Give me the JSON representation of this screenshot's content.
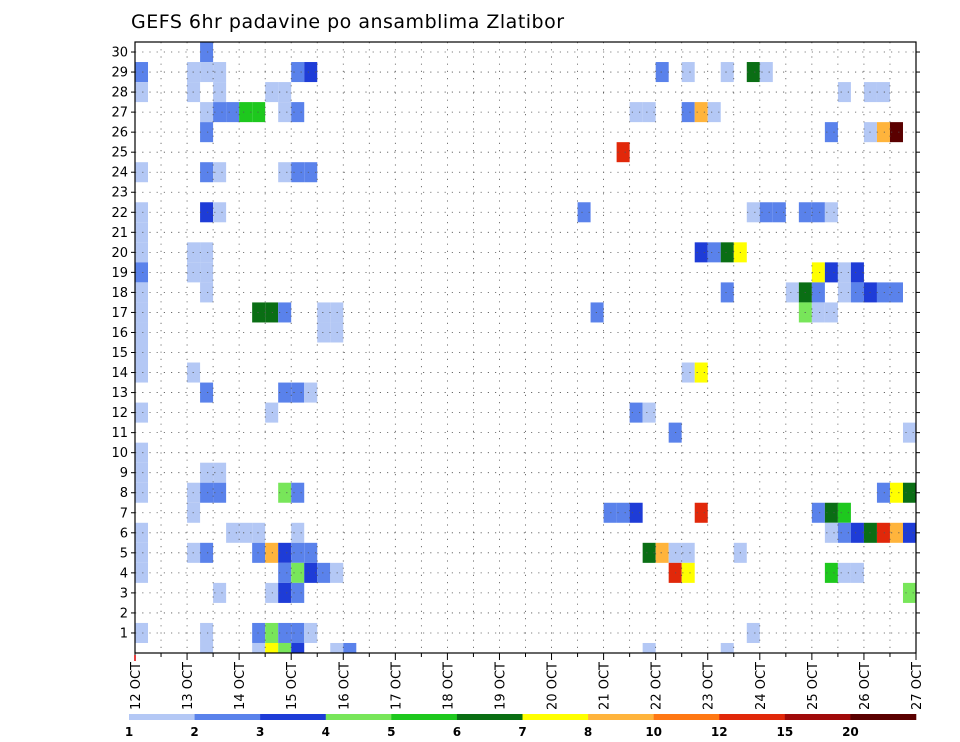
{
  "chart_data": {
    "type": "heatmap",
    "title": "GEFS 6hr padavine po ansamblima Zlatibor",
    "xlabel": "",
    "ylabel": "",
    "x_tick_labels": [
      "12 OCT",
      "13 OCT",
      "14 OCT",
      "15 OCT",
      "16 OCT",
      "17 OCT",
      "18 OCT",
      "19 OCT",
      "20 OCT",
      "21 OCT",
      "22 OCT",
      "23 OCT",
      "24 OCT",
      "25 OCT",
      "26 OCT",
      "27 OCT"
    ],
    "y_tick_labels": [
      "1",
      "2",
      "3",
      "4",
      "5",
      "6",
      "7",
      "8",
      "9",
      "10",
      "11",
      "12",
      "13",
      "14",
      "15",
      "16",
      "17",
      "18",
      "19",
      "20",
      "21",
      "22",
      "23",
      "24",
      "25",
      "26",
      "27",
      "28",
      "29",
      "30"
    ],
    "xlim": [
      "12 OCT",
      "27 OCT"
    ],
    "ylim": [
      0,
      30
    ],
    "grid": "dotted",
    "color_scale": {
      "labels": [
        "1",
        "2",
        "3",
        "4",
        "5",
        "6",
        "7",
        "8",
        "10",
        "12",
        "15",
        "20"
      ],
      "colors": [
        "#b4c8f5",
        "#5a82eb",
        "#1e3cd7",
        "#78e65a",
        "#1ec81e",
        "#0a6e14",
        "#ffff00",
        "#ffb43c",
        "#ff7814",
        "#e1280a",
        "#a00a0a",
        "#5a0000"
      ]
    },
    "cells": [
      {
        "member": 30,
        "time": "13 OCT 12Z",
        "value": 2
      },
      {
        "member": 29,
        "time": "12 OCT 06Z",
        "value": 2
      },
      {
        "member": 29,
        "time": "13 OCT 06Z",
        "value": 1
      },
      {
        "member": 29,
        "time": "13 OCT 12Z",
        "value": 1
      },
      {
        "member": 29,
        "time": "13 OCT 18Z",
        "value": 1
      },
      {
        "member": 29,
        "time": "15 OCT 06Z",
        "value": 2
      },
      {
        "member": 29,
        "time": "15 OCT 12Z",
        "value": 3
      },
      {
        "member": 29,
        "time": "22 OCT 06Z",
        "value": 2
      },
      {
        "member": 29,
        "time": "22 OCT 18Z",
        "value": 1
      },
      {
        "member": 29,
        "time": "23 OCT 12Z",
        "value": 1
      },
      {
        "member": 29,
        "time": "24 OCT 00Z",
        "value": 6
      },
      {
        "member": 29,
        "time": "24 OCT 06Z",
        "value": 1
      },
      {
        "member": 28,
        "time": "12 OCT 06Z",
        "value": 1
      },
      {
        "member": 28,
        "time": "13 OCT 06Z",
        "value": 1
      },
      {
        "member": 28,
        "time": "13 OCT 18Z",
        "value": 1
      },
      {
        "member": 28,
        "time": "14 OCT 18Z",
        "value": 1
      },
      {
        "member": 28,
        "time": "15 OCT 00Z",
        "value": 1
      },
      {
        "member": 28,
        "time": "25 OCT 18Z",
        "value": 1
      },
      {
        "member": 28,
        "time": "26 OCT 06Z",
        "value": 1
      },
      {
        "member": 28,
        "time": "26 OCT 12Z",
        "value": 1
      },
      {
        "member": 27,
        "time": "13 OCT 12Z",
        "value": 1
      },
      {
        "member": 27,
        "time": "13 OCT 18Z",
        "value": 2
      },
      {
        "member": 27,
        "time": "14 OCT 00Z",
        "value": 2
      },
      {
        "member": 27,
        "time": "14 OCT 06Z",
        "value": 5
      },
      {
        "member": 27,
        "time": "14 OCT 12Z",
        "value": 5
      },
      {
        "member": 27,
        "time": "15 OCT 00Z",
        "value": 1
      },
      {
        "member": 27,
        "time": "15 OCT 06Z",
        "value": 2
      },
      {
        "member": 27,
        "time": "21 OCT 18Z",
        "value": 1
      },
      {
        "member": 27,
        "time": "22 OCT 00Z",
        "value": 1
      },
      {
        "member": 27,
        "time": "22 OCT 18Z",
        "value": 2
      },
      {
        "member": 27,
        "time": "23 OCT 00Z",
        "value": 8
      },
      {
        "member": 27,
        "time": "23 OCT 06Z",
        "value": 1
      },
      {
        "member": 26,
        "time": "13 OCT 12Z",
        "value": 2
      },
      {
        "member": 26,
        "time": "25 OCT 12Z",
        "value": 2
      },
      {
        "member": 26,
        "time": "26 OCT 06Z",
        "value": 1
      },
      {
        "member": 26,
        "time": "26 OCT 12Z",
        "value": 8
      },
      {
        "member": 26,
        "time": "26 OCT 18Z",
        "value": 20
      },
      {
        "member": 25,
        "time": "21 OCT 12Z",
        "value": 12
      },
      {
        "member": 24,
        "time": "12 OCT 06Z",
        "value": 1
      },
      {
        "member": 24,
        "time": "13 OCT 12Z",
        "value": 2
      },
      {
        "member": 24,
        "time": "13 OCT 18Z",
        "value": 1
      },
      {
        "member": 24,
        "time": "15 OCT 00Z",
        "value": 1
      },
      {
        "member": 24,
        "time": "15 OCT 06Z",
        "value": 2
      },
      {
        "member": 24,
        "time": "15 OCT 12Z",
        "value": 2
      },
      {
        "member": 22,
        "time": "12 OCT 06Z",
        "value": 1
      },
      {
        "member": 22,
        "time": "13 OCT 12Z",
        "value": 3
      },
      {
        "member": 22,
        "time": "13 OCT 18Z",
        "value": 1
      },
      {
        "member": 22,
        "time": "20 OCT 18Z",
        "value": 2
      },
      {
        "member": 22,
        "time": "24 OCT 00Z",
        "value": 1
      },
      {
        "member": 22,
        "time": "24 OCT 06Z",
        "value": 2
      },
      {
        "member": 22,
        "time": "24 OCT 12Z",
        "value": 2
      },
      {
        "member": 22,
        "time": "25 OCT 00Z",
        "value": 2
      },
      {
        "member": 22,
        "time": "25 OCT 06Z",
        "value": 2
      },
      {
        "member": 22,
        "time": "25 OCT 12Z",
        "value": 1
      },
      {
        "member": 21,
        "time": "12 OCT 06Z",
        "value": 1
      },
      {
        "member": 20,
        "time": "12 OCT 06Z",
        "value": 1
      },
      {
        "member": 20,
        "time": "13 OCT 06Z",
        "value": 1
      },
      {
        "member": 20,
        "time": "13 OCT 12Z",
        "value": 1
      },
      {
        "member": 20,
        "time": "23 OCT 00Z",
        "value": 3
      },
      {
        "member": 20,
        "time": "23 OCT 06Z",
        "value": 2
      },
      {
        "member": 20,
        "time": "23 OCT 12Z",
        "value": 6
      },
      {
        "member": 20,
        "time": "23 OCT 18Z",
        "value": 7
      },
      {
        "member": 19,
        "time": "12 OCT 06Z",
        "value": 2
      },
      {
        "member": 19,
        "time": "13 OCT 06Z",
        "value": 1
      },
      {
        "member": 19,
        "time": "13 OCT 12Z",
        "value": 1
      },
      {
        "member": 19,
        "time": "25 OCT 06Z",
        "value": 7
      },
      {
        "member": 19,
        "time": "25 OCT 12Z",
        "value": 3
      },
      {
        "member": 19,
        "time": "25 OCT 18Z",
        "value": 1
      },
      {
        "member": 19,
        "time": "26 OCT 00Z",
        "value": 3
      },
      {
        "member": 18,
        "time": "12 OCT 06Z",
        "value": 1
      },
      {
        "member": 18,
        "time": "13 OCT 12Z",
        "value": 1
      },
      {
        "member": 18,
        "time": "23 OCT 12Z",
        "value": 2
      },
      {
        "member": 18,
        "time": "24 OCT 18Z",
        "value": 1
      },
      {
        "member": 18,
        "time": "25 OCT 00Z",
        "value": 6
      },
      {
        "member": 18,
        "time": "25 OCT 06Z",
        "value": 2
      },
      {
        "member": 18,
        "time": "25 OCT 18Z",
        "value": 1
      },
      {
        "member": 18,
        "time": "26 OCT 00Z",
        "value": 2
      },
      {
        "member": 18,
        "time": "26 OCT 06Z",
        "value": 3
      },
      {
        "member": 18,
        "time": "26 OCT 12Z",
        "value": 2
      },
      {
        "member": 18,
        "time": "26 OCT 18Z",
        "value": 2
      },
      {
        "member": 17,
        "time": "12 OCT 06Z",
        "value": 1
      },
      {
        "member": 17,
        "time": "14 OCT 12Z",
        "value": 6
      },
      {
        "member": 17,
        "time": "14 OCT 18Z",
        "value": 6
      },
      {
        "member": 17,
        "time": "15 OCT 00Z",
        "value": 2
      },
      {
        "member": 17,
        "time": "15 OCT 18Z",
        "value": 1
      },
      {
        "member": 17,
        "time": "16 OCT 00Z",
        "value": 1
      },
      {
        "member": 17,
        "time": "21 OCT 00Z",
        "value": 2
      },
      {
        "member": 17,
        "time": "25 OCT 00Z",
        "value": 4
      },
      {
        "member": 17,
        "time": "25 OCT 06Z",
        "value": 1
      },
      {
        "member": 17,
        "time": "25 OCT 12Z",
        "value": 1
      },
      {
        "member": 16,
        "time": "12 OCT 06Z",
        "value": 1
      },
      {
        "member": 16,
        "time": "15 OCT 18Z",
        "value": 1
      },
      {
        "member": 16,
        "time": "16 OCT 00Z",
        "value": 1
      },
      {
        "member": 15,
        "time": "12 OCT 06Z",
        "value": 1
      },
      {
        "member": 14,
        "time": "12 OCT 06Z",
        "value": 1
      },
      {
        "member": 14,
        "time": "13 OCT 06Z",
        "value": 1
      },
      {
        "member": 14,
        "time": "22 OCT 18Z",
        "value": 1
      },
      {
        "member": 14,
        "time": "23 OCT 00Z",
        "value": 7
      },
      {
        "member": 13,
        "time": "13 OCT 12Z",
        "value": 2
      },
      {
        "member": 13,
        "time": "15 OCT 00Z",
        "value": 2
      },
      {
        "member": 13,
        "time": "15 OCT 06Z",
        "value": 2
      },
      {
        "member": 13,
        "time": "15 OCT 12Z",
        "value": 1
      },
      {
        "member": 12,
        "time": "12 OCT 06Z",
        "value": 1
      },
      {
        "member": 12,
        "time": "14 OCT 18Z",
        "value": 1
      },
      {
        "member": 12,
        "time": "21 OCT 18Z",
        "value": 2
      },
      {
        "member": 12,
        "time": "22 OCT 00Z",
        "value": 1
      },
      {
        "member": 11,
        "time": "22 OCT 12Z",
        "value": 2
      },
      {
        "member": 11,
        "time": "27 OCT 00Z",
        "value": 1
      },
      {
        "member": 10,
        "time": "12 OCT 06Z",
        "value": 1
      },
      {
        "member": 9,
        "time": "12 OCT 06Z",
        "value": 1
      },
      {
        "member": 9,
        "time": "13 OCT 12Z",
        "value": 1
      },
      {
        "member": 9,
        "time": "13 OCT 18Z",
        "value": 1
      },
      {
        "member": 8,
        "time": "12 OCT 06Z",
        "value": 1
      },
      {
        "member": 8,
        "time": "13 OCT 06Z",
        "value": 1
      },
      {
        "member": 8,
        "time": "13 OCT 12Z",
        "value": 2
      },
      {
        "member": 8,
        "time": "13 OCT 18Z",
        "value": 2
      },
      {
        "member": 8,
        "time": "15 OCT 00Z",
        "value": 4
      },
      {
        "member": 8,
        "time": "15 OCT 06Z",
        "value": 2
      },
      {
        "member": 8,
        "time": "26 OCT 12Z",
        "value": 2
      },
      {
        "member": 8,
        "time": "26 OCT 18Z",
        "value": 7
      },
      {
        "member": 8,
        "time": "27 OCT 00Z",
        "value": 6
      },
      {
        "member": 7,
        "time": "13 OCT 06Z",
        "value": 1
      },
      {
        "member": 7,
        "time": "21 OCT 06Z",
        "value": 2
      },
      {
        "member": 7,
        "time": "21 OCT 12Z",
        "value": 2
      },
      {
        "member": 7,
        "time": "21 OCT 18Z",
        "value": 3
      },
      {
        "member": 7,
        "time": "23 OCT 00Z",
        "value": 12
      },
      {
        "member": 7,
        "time": "25 OCT 06Z",
        "value": 2
      },
      {
        "member": 7,
        "time": "25 OCT 12Z",
        "value": 6
      },
      {
        "member": 7,
        "time": "25 OCT 18Z",
        "value": 5
      },
      {
        "member": 6,
        "time": "12 OCT 06Z",
        "value": 1
      },
      {
        "member": 6,
        "time": "14 OCT 00Z",
        "value": 1
      },
      {
        "member": 6,
        "time": "14 OCT 06Z",
        "value": 1
      },
      {
        "member": 6,
        "time": "14 OCT 12Z",
        "value": 1
      },
      {
        "member": 6,
        "time": "15 OCT 06Z",
        "value": 1
      },
      {
        "member": 6,
        "time": "25 OCT 12Z",
        "value": 1
      },
      {
        "member": 6,
        "time": "25 OCT 18Z",
        "value": 2
      },
      {
        "member": 6,
        "time": "26 OCT 00Z",
        "value": 3
      },
      {
        "member": 6,
        "time": "26 OCT 06Z",
        "value": 6
      },
      {
        "member": 6,
        "time": "26 OCT 12Z",
        "value": 12
      },
      {
        "member": 6,
        "time": "26 OCT 18Z",
        "value": 8
      },
      {
        "member": 6,
        "time": "27 OCT 00Z",
        "value": 3
      },
      {
        "member": 5,
        "time": "12 OCT 06Z",
        "value": 1
      },
      {
        "member": 5,
        "time": "13 OCT 06Z",
        "value": 1
      },
      {
        "member": 5,
        "time": "13 OCT 12Z",
        "value": 2
      },
      {
        "member": 5,
        "time": "14 OCT 12Z",
        "value": 2
      },
      {
        "member": 5,
        "time": "14 OCT 18Z",
        "value": 8
      },
      {
        "member": 5,
        "time": "15 OCT 00Z",
        "value": 3
      },
      {
        "member": 5,
        "time": "15 OCT 06Z",
        "value": 2
      },
      {
        "member": 5,
        "time": "15 OCT 12Z",
        "value": 2
      },
      {
        "member": 5,
        "time": "22 OCT 00Z",
        "value": 6
      },
      {
        "member": 5,
        "time": "22 OCT 06Z",
        "value": 8
      },
      {
        "member": 5,
        "time": "22 OCT 12Z",
        "value": 1
      },
      {
        "member": 5,
        "time": "22 OCT 18Z",
        "value": 1
      },
      {
        "member": 5,
        "time": "23 OCT 18Z",
        "value": 1
      },
      {
        "member": 4,
        "time": "12 OCT 06Z",
        "value": 1
      },
      {
        "member": 4,
        "time": "15 OCT 00Z",
        "value": 2
      },
      {
        "member": 4,
        "time": "15 OCT 06Z",
        "value": 4
      },
      {
        "member": 4,
        "time": "15 OCT 12Z",
        "value": 3
      },
      {
        "member": 4,
        "time": "15 OCT 18Z",
        "value": 2
      },
      {
        "member": 4,
        "time": "16 OCT 00Z",
        "value": 1
      },
      {
        "member": 4,
        "time": "22 OCT 12Z",
        "value": 12
      },
      {
        "member": 4,
        "time": "22 OCT 18Z",
        "value": 7
      },
      {
        "member": 4,
        "time": "25 OCT 12Z",
        "value": 5
      },
      {
        "member": 4,
        "time": "25 OCT 18Z",
        "value": 1
      },
      {
        "member": 4,
        "time": "26 OCT 00Z",
        "value": 1
      },
      {
        "member": 3,
        "time": "13 OCT 18Z",
        "value": 1
      },
      {
        "member": 3,
        "time": "14 OCT 18Z",
        "value": 1
      },
      {
        "member": 3,
        "time": "15 OCT 00Z",
        "value": 3
      },
      {
        "member": 3,
        "time": "15 OCT 06Z",
        "value": 2
      },
      {
        "member": 3,
        "time": "27 OCT 00Z",
        "value": 4
      },
      {
        "member": 1,
        "time": "12 OCT 06Z",
        "value": 1
      },
      {
        "member": 1,
        "time": "13 OCT 12Z",
        "value": 1
      },
      {
        "member": 1,
        "time": "14 OCT 12Z",
        "value": 2
      },
      {
        "member": 1,
        "time": "14 OCT 18Z",
        "value": 4
      },
      {
        "member": 1,
        "time": "15 OCT 00Z",
        "value": 2
      },
      {
        "member": 1,
        "time": "15 OCT 06Z",
        "value": 2
      },
      {
        "member": 1,
        "time": "15 OCT 12Z",
        "value": 1
      },
      {
        "member": 1,
        "time": "24 OCT 00Z",
        "value": 1
      },
      {
        "member": 0,
        "time": "13 OCT 12Z",
        "value": 1
      },
      {
        "member": 0,
        "time": "14 OCT 12Z",
        "value": 1
      },
      {
        "member": 0,
        "time": "14 OCT 18Z",
        "value": 7
      },
      {
        "member": 0,
        "time": "15 OCT 00Z",
        "value": 4
      },
      {
        "member": 0,
        "time": "15 OCT 06Z",
        "value": 3
      },
      {
        "member": 0,
        "time": "16 OCT 00Z",
        "value": 1
      },
      {
        "member": 0,
        "time": "16 OCT 06Z",
        "value": 2
      },
      {
        "member": 0,
        "time": "22 OCT 00Z",
        "value": 1
      },
      {
        "member": 0,
        "time": "23 OCT 12Z",
        "value": 1
      }
    ]
  }
}
